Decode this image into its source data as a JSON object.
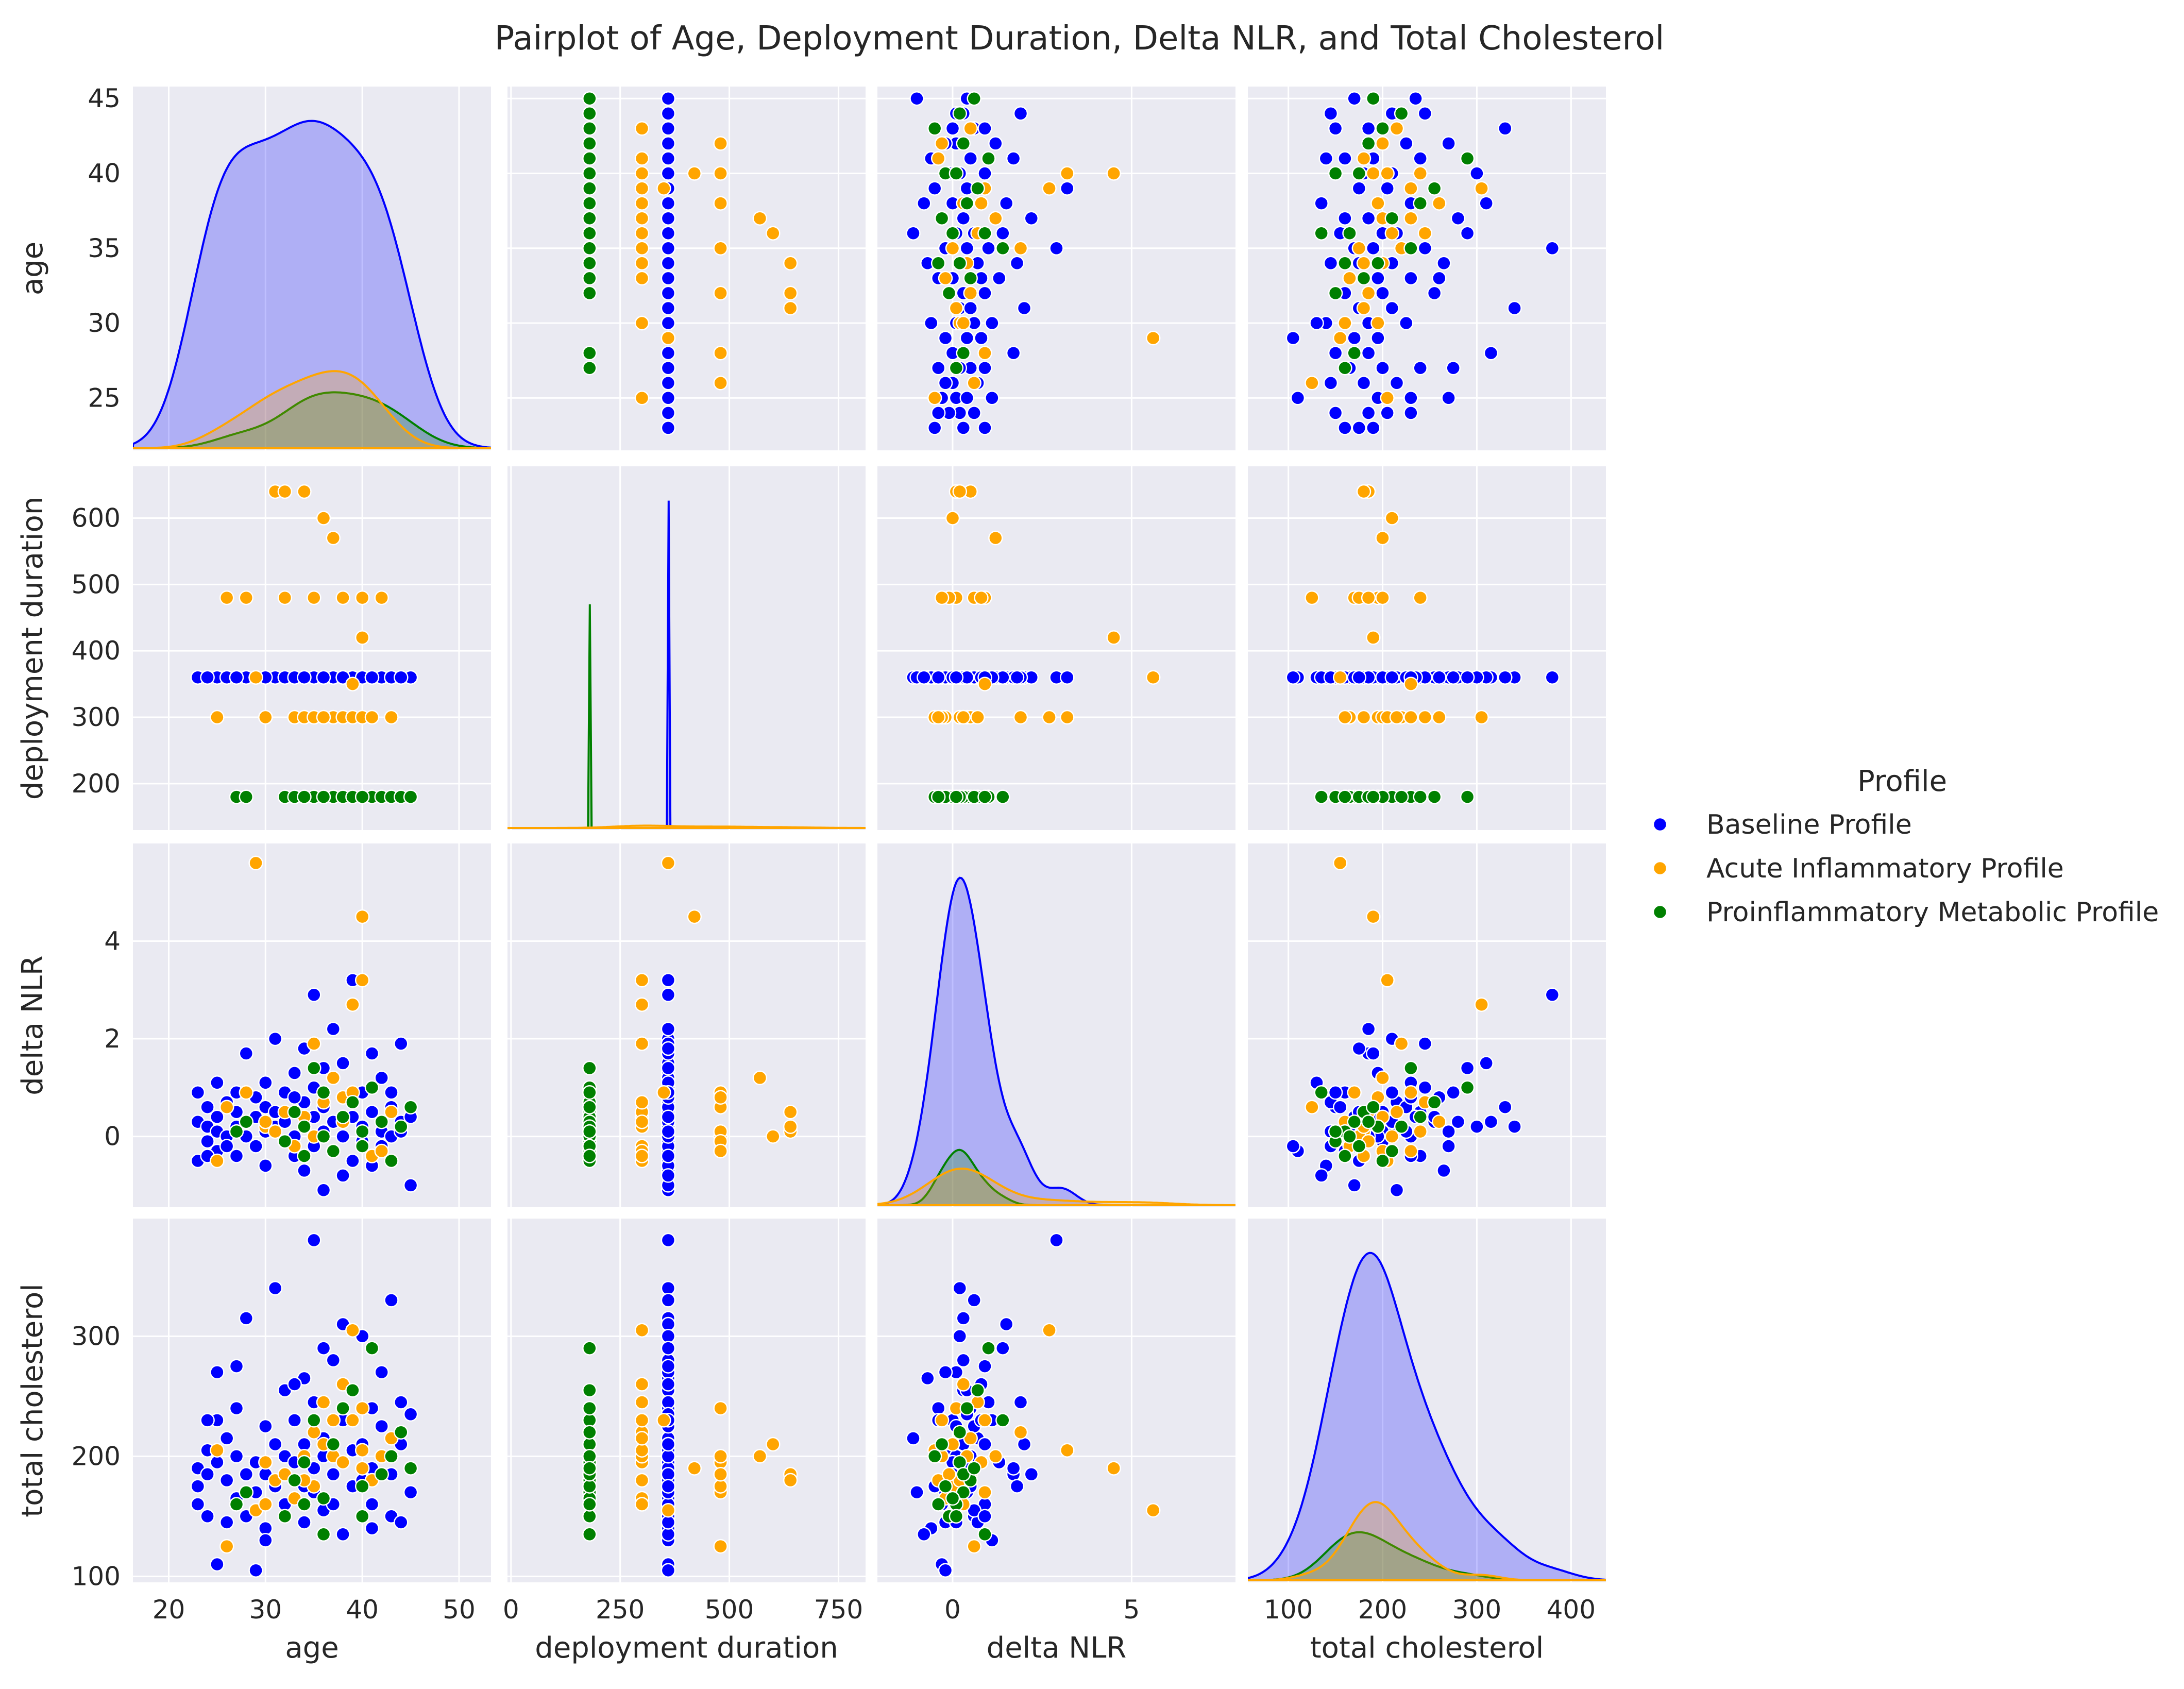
{
  "chart_data": {
    "type": "pairplot",
    "title": "Pairplot of Age, Deployment Duration, Delta NLR, and Total Cholesterol",
    "variables": [
      {
        "key": "age",
        "label": "age",
        "xlim": [
          16.3,
          53.3
        ],
        "ylim": [
          21.5,
          45.8
        ],
        "xticks": [
          20,
          30,
          40,
          50
        ],
        "yticks": [
          25,
          30,
          35,
          40,
          45
        ]
      },
      {
        "key": "dep",
        "label": "deployment duration",
        "xlim": [
          -8,
          812
        ],
        "ylim": [
          130,
          678
        ],
        "xticks": [
          0,
          250,
          500,
          750
        ],
        "yticks": [
          200,
          300,
          400,
          500,
          600
        ]
      },
      {
        "key": "nlr",
        "label": "delta NLR",
        "xlim": [
          -2.1,
          7.9
        ],
        "ylim": [
          -1.45,
          6.0
        ],
        "xticks": [
          0,
          5
        ],
        "yticks": [
          0,
          2,
          4
        ]
      },
      {
        "key": "chol",
        "label": "total cholesterol",
        "xlim": [
          57,
          437
        ],
        "ylim": [
          95,
          398
        ],
        "xticks": [
          100,
          200,
          300,
          400
        ],
        "yticks": [
          100,
          200,
          300
        ]
      }
    ],
    "legend": {
      "title": "Profile",
      "placement": "right",
      "entries": [
        {
          "name": "Baseline Profile",
          "color": "#0000ff"
        },
        {
          "name": "Acute Inflammatory Profile",
          "color": "#ffa500"
        },
        {
          "name": "Proinflammatory Metabolic Profile",
          "color": "#008000"
        }
      ]
    },
    "groups": [
      {
        "name": "Baseline Profile",
        "color": "#0000ff",
        "kde_scale": 1.0,
        "points": [
          [
            23,
            360,
            0.3,
            190
          ],
          [
            23,
            360,
            -0.5,
            175
          ],
          [
            23,
            360,
            0.9,
            160
          ],
          [
            24,
            360,
            0.2,
            205
          ],
          [
            24,
            360,
            -0.1,
            185
          ],
          [
            24,
            360,
            0.6,
            150
          ],
          [
            25,
            360,
            0.1,
            270
          ],
          [
            25,
            360,
            -0.3,
            110
          ],
          [
            25,
            360,
            0.4,
            195
          ],
          [
            25,
            360,
            1.1,
            230
          ],
          [
            26,
            360,
            0.0,
            180
          ],
          [
            26,
            360,
            0.7,
            215
          ],
          [
            26,
            360,
            -0.2,
            145
          ],
          [
            27,
            360,
            0.5,
            200
          ],
          [
            27,
            360,
            0.2,
            165
          ],
          [
            27,
            360,
            -0.4,
            240
          ],
          [
            28,
            360,
            1.7,
            185
          ],
          [
            28,
            360,
            0.3,
            315
          ],
          [
            28,
            360,
            0.0,
            150
          ],
          [
            29,
            360,
            0.8,
            195
          ],
          [
            29,
            360,
            -0.2,
            105
          ],
          [
            29,
            360,
            0.4,
            170
          ],
          [
            30,
            360,
            0.6,
            225
          ],
          [
            30,
            360,
            0.1,
            185
          ],
          [
            30,
            360,
            -0.6,
            140
          ],
          [
            31,
            360,
            2.0,
            210
          ],
          [
            31,
            360,
            0.2,
            340
          ],
          [
            31,
            360,
            0.5,
            175
          ],
          [
            32,
            360,
            -0.1,
            200
          ],
          [
            32,
            360,
            0.9,
            160
          ],
          [
            32,
            360,
            0.3,
            255
          ],
          [
            33,
            360,
            1.3,
            195
          ],
          [
            33,
            360,
            -0.4,
            180
          ],
          [
            33,
            360,
            0.0,
            230
          ],
          [
            34,
            360,
            0.7,
            145
          ],
          [
            34,
            360,
            0.2,
            210
          ],
          [
            34,
            360,
            -0.7,
            265
          ],
          [
            35,
            360,
            2.9,
            380
          ],
          [
            35,
            360,
            0.4,
            190
          ],
          [
            35,
            360,
            -0.2,
            170
          ],
          [
            35,
            360,
            1.0,
            245
          ],
          [
            36,
            360,
            0.1,
            200
          ],
          [
            36,
            360,
            0.6,
            155
          ],
          [
            36,
            360,
            -1.1,
            215
          ],
          [
            37,
            360,
            2.2,
            185
          ],
          [
            37,
            360,
            0.3,
            280
          ],
          [
            37,
            360,
            -0.3,
            160
          ],
          [
            38,
            360,
            0.8,
            230
          ],
          [
            38,
            360,
            0.0,
            195
          ],
          [
            38,
            360,
            1.5,
            310
          ],
          [
            39,
            360,
            3.2,
            205
          ],
          [
            39,
            360,
            -0.5,
            175
          ],
          [
            39,
            360,
            0.4,
            255
          ],
          [
            40,
            360,
            0.9,
            210
          ],
          [
            40,
            360,
            -0.1,
            180
          ],
          [
            40,
            360,
            0.2,
            300
          ],
          [
            41,
            360,
            1.7,
            190
          ],
          [
            41,
            360,
            0.5,
            240
          ],
          [
            41,
            360,
            -0.4,
            160
          ],
          [
            42,
            360,
            0.1,
            225
          ],
          [
            42,
            360,
            1.2,
            200
          ],
          [
            42,
            360,
            -0.2,
            270
          ],
          [
            43,
            360,
            0.6,
            330
          ],
          [
            43,
            360,
            0.0,
            185
          ],
          [
            44,
            360,
            1.9,
            245
          ],
          [
            44,
            360,
            0.3,
            210
          ],
          [
            45,
            360,
            -1.0,
            170
          ],
          [
            45,
            360,
            0.4,
            235
          ],
          [
            43,
            360,
            0.9,
            150
          ],
          [
            41,
            360,
            -0.6,
            140
          ],
          [
            36,
            360,
            1.4,
            290
          ],
          [
            33,
            360,
            0.8,
            260
          ],
          [
            30,
            360,
            1.1,
            130
          ],
          [
            27,
            360,
            0.9,
            275
          ],
          [
            24,
            360,
            -0.4,
            230
          ],
          [
            38,
            360,
            -0.8,
            135
          ],
          [
            44,
            360,
            0.1,
            145
          ],
          [
            34,
            360,
            1.8,
            175
          ]
        ]
      },
      {
        "name": "Acute Inflammatory Profile",
        "color": "#ffa500",
        "kde_scale": 0.16,
        "points": [
          [
            25,
            300,
            -0.5,
            205
          ],
          [
            26,
            480,
            0.6,
            125
          ],
          [
            28,
            480,
            0.9,
            170
          ],
          [
            29,
            360,
            5.6,
            155
          ],
          [
            30,
            300,
            0.2,
            195
          ],
          [
            31,
            640,
            0.1,
            180
          ],
          [
            32,
            640,
            0.5,
            185
          ],
          [
            33,
            300,
            -0.2,
            165
          ],
          [
            34,
            300,
            0.4,
            200
          ],
          [
            35,
            300,
            1.9,
            220
          ],
          [
            35,
            480,
            0.0,
            175
          ],
          [
            36,
            600,
            0.0,
            210
          ],
          [
            37,
            570,
            1.2,
            200
          ],
          [
            37,
            300,
            -0.3,
            230
          ],
          [
            38,
            300,
            0.3,
            260
          ],
          [
            38,
            480,
            0.8,
            195
          ],
          [
            39,
            300,
            2.7,
            305
          ],
          [
            39,
            350,
            0.9,
            230
          ],
          [
            40,
            420,
            4.5,
            190
          ],
          [
            40,
            480,
            0.1,
            240
          ],
          [
            40,
            300,
            3.2,
            205
          ],
          [
            41,
            300,
            -0.4,
            180
          ],
          [
            43,
            300,
            0.5,
            215
          ],
          [
            34,
            640,
            0.2,
            180
          ],
          [
            32,
            480,
            -0.1,
            185
          ],
          [
            36,
            300,
            0.7,
            245
          ],
          [
            42,
            480,
            -0.3,
            200
          ],
          [
            30,
            300,
            0.3,
            160
          ]
        ]
      },
      {
        "name": "Proinflammatory Metabolic Profile",
        "color": "#008000",
        "kde_scale": 0.12,
        "points": [
          [
            27,
            180,
            0.1,
            160
          ],
          [
            28,
            180,
            0.3,
            170
          ],
          [
            32,
            180,
            -0.1,
            150
          ],
          [
            33,
            180,
            0.5,
            180
          ],
          [
            34,
            180,
            0.2,
            195
          ],
          [
            35,
            180,
            1.4,
            230
          ],
          [
            36,
            180,
            0.0,
            165
          ],
          [
            37,
            180,
            -0.3,
            210
          ],
          [
            38,
            180,
            0.4,
            240
          ],
          [
            39,
            180,
            0.7,
            255
          ],
          [
            40,
            180,
            -0.2,
            175
          ],
          [
            41,
            180,
            1.0,
            290
          ],
          [
            42,
            180,
            0.3,
            185
          ],
          [
            43,
            180,
            -0.5,
            200
          ],
          [
            44,
            180,
            0.2,
            220
          ],
          [
            45,
            180,
            0.6,
            190
          ],
          [
            36,
            180,
            0.9,
            135
          ],
          [
            40,
            180,
            0.1,
            150
          ],
          [
            34,
            180,
            -0.4,
            160
          ]
        ]
      }
    ]
  }
}
